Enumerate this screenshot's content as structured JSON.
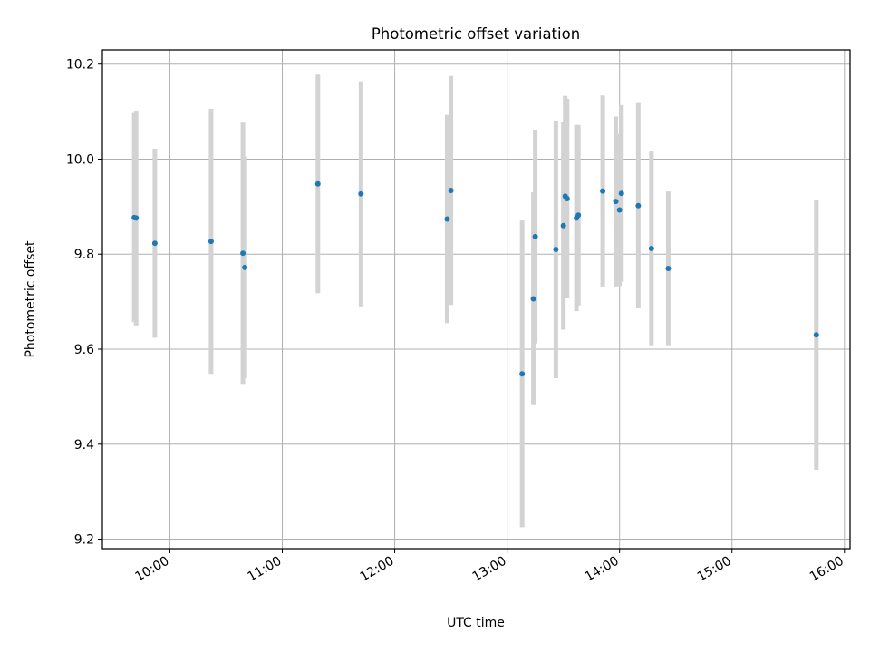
{
  "chart_data": {
    "type": "scatter",
    "title": "Photometric offset variation",
    "xlabel": "UTC time",
    "ylabel": "Photometric offset",
    "xlim": [
      "09:24",
      "16:03"
    ],
    "ylim": [
      9.18,
      10.23
    ],
    "grid": true,
    "x_ticks": [
      "10:00",
      "11:00",
      "12:00",
      "13:00",
      "14:00",
      "15:00",
      "16:00"
    ],
    "y_ticks": [
      9.2,
      9.4,
      9.6,
      9.8,
      10.0,
      10.2
    ],
    "y_tick_labels": [
      "9.2",
      "9.4",
      "9.6",
      "9.8",
      "10.0",
      "10.2"
    ],
    "series": [
      {
        "marker_color": "#1f77b4",
        "errorbar_color": "#d3d3d3",
        "points": [
          {
            "x": "09:41",
            "y": 9.877,
            "err": 0.22
          },
          {
            "x": "09:42",
            "y": 9.876,
            "err": 0.226
          },
          {
            "x": "09:52",
            "y": 9.823,
            "err": 0.199
          },
          {
            "x": "10:22",
            "y": 9.827,
            "err": 0.279
          },
          {
            "x": "10:39",
            "y": 9.802,
            "err": 0.275
          },
          {
            "x": "10:40",
            "y": 9.772,
            "err": 0.233
          },
          {
            "x": "11:19",
            "y": 9.948,
            "err": 0.23
          },
          {
            "x": "11:42",
            "y": 9.927,
            "err": 0.237
          },
          {
            "x": "12:28",
            "y": 9.874,
            "err": 0.219
          },
          {
            "x": "12:30",
            "y": 9.934,
            "err": 0.241
          },
          {
            "x": "13:08",
            "y": 9.548,
            "err": 0.323
          },
          {
            "x": "13:14",
            "y": 9.706,
            "err": 0.224
          },
          {
            "x": "13:15",
            "y": 9.837,
            "err": 0.225
          },
          {
            "x": "13:26",
            "y": 9.81,
            "err": 0.271
          },
          {
            "x": "13:30",
            "y": 9.86,
            "err": 0.219
          },
          {
            "x": "13:31",
            "y": 9.922,
            "err": 0.211
          },
          {
            "x": "13:32",
            "y": 9.917,
            "err": 0.21
          },
          {
            "x": "13:37",
            "y": 9.876,
            "err": 0.196
          },
          {
            "x": "13:38",
            "y": 9.882,
            "err": 0.19
          },
          {
            "x": "13:51",
            "y": 9.933,
            "err": 0.201
          },
          {
            "x": "13:58",
            "y": 9.911,
            "err": 0.179
          },
          {
            "x": "14:00",
            "y": 9.893,
            "err": 0.16
          },
          {
            "x": "14:01",
            "y": 9.928,
            "err": 0.186
          },
          {
            "x": "14:10",
            "y": 9.902,
            "err": 0.216
          },
          {
            "x": "14:17",
            "y": 9.812,
            "err": 0.204
          },
          {
            "x": "14:26",
            "y": 9.77,
            "err": 0.162
          },
          {
            "x": "15:45",
            "y": 9.63,
            "err": 0.284
          }
        ]
      }
    ]
  }
}
